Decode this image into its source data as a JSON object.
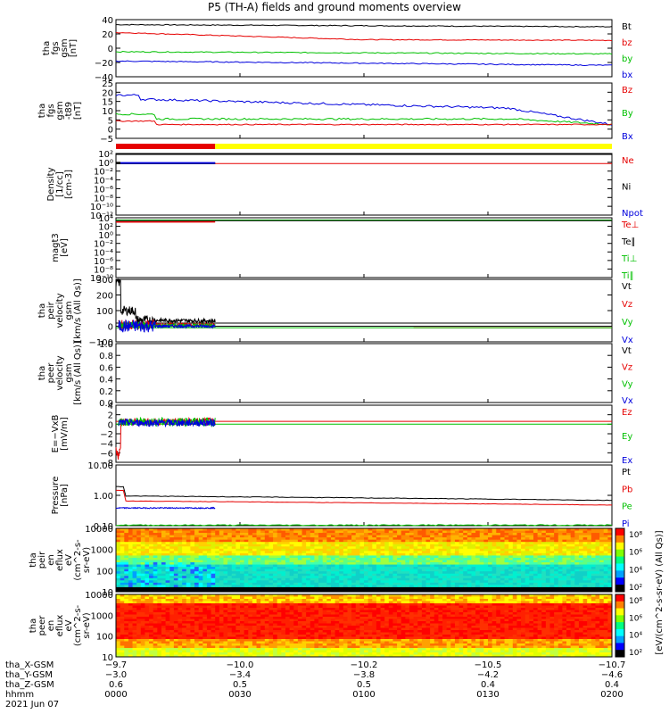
{
  "title": "P5 (TH-A) fields and ground moments overview",
  "colors": {
    "black": "#000000",
    "red": "#e60000",
    "green": "#00c000",
    "blue": "#0000dd",
    "yellow": "#ffff00"
  },
  "panels": [
    {
      "id": "fgs",
      "ylabel": [
        "tha",
        "fgs",
        "gsm",
        "[nT]"
      ],
      "ticks": [
        "40",
        "20",
        "0",
        "−20",
        "−40"
      ],
      "legend": [
        {
          "t": "Bt",
          "c": "black"
        },
        {
          "t": "bz",
          "c": "red"
        },
        {
          "t": "by",
          "c": "green"
        },
        {
          "t": "bx",
          "c": "blue"
        }
      ]
    },
    {
      "id": "fgs_h",
      "ylabel": [
        "tha",
        "fgs",
        "gsm",
        "-t89",
        "[nT]"
      ],
      "ticks": [
        "25",
        "20",
        "15",
        "10",
        "5",
        "0",
        "−5"
      ],
      "legend": [
        {
          "t": "Bz",
          "c": "red"
        },
        {
          "t": "By",
          "c": "green"
        },
        {
          "t": "Bx",
          "c": "blue"
        }
      ]
    },
    {
      "id": "dens",
      "ylabel": [
        "Density",
        "[1/cc]",
        "[cm-3]"
      ],
      "ticks": [
        "10²",
        "10⁰",
        "10⁻²",
        "10⁻⁴",
        "10⁻⁶",
        "10⁻⁸",
        "10⁻¹⁰",
        "10⁻¹²"
      ],
      "legend": [
        {
          "t": "Ne",
          "c": "red"
        },
        {
          "t": "Ni",
          "c": "black"
        },
        {
          "t": "Npot",
          "c": "blue"
        }
      ]
    },
    {
      "id": "temp",
      "ylabel": [
        "magt3",
        "[eV]"
      ],
      "ticks": [
        "10⁴",
        "10²",
        "10⁰",
        "10⁻²",
        "10⁻⁴",
        "10⁻⁶",
        "10⁻⁸",
        "10⁻¹⁰"
      ],
      "legend": [
        {
          "t": "Te⊥",
          "c": "red"
        },
        {
          "t": "Te∥",
          "c": "black"
        },
        {
          "t": "Ti⊥",
          "c": "green"
        },
        {
          "t": "Ti∥",
          "c": "green"
        }
      ]
    },
    {
      "id": "vi",
      "ylabel": [
        "tha",
        "peir",
        "velocity",
        "gsm",
        "[km/s (All Qs)]"
      ],
      "ticks": [
        "300",
        "200",
        "100",
        "0",
        "−100"
      ],
      "legend": [
        {
          "t": "Vt",
          "c": "black"
        },
        {
          "t": "Vz",
          "c": "red"
        },
        {
          "t": "Vy",
          "c": "green"
        },
        {
          "t": "Vx",
          "c": "blue"
        }
      ]
    },
    {
      "id": "ve",
      "ylabel": [
        "tha",
        "peer",
        "velocity",
        "gsm",
        "[km/s (All Qs)]"
      ],
      "ticks": [
        "1.0",
        "0.8",
        "0.6",
        "0.4",
        "0.2",
        "0.0"
      ],
      "legend": [
        {
          "t": "Vt",
          "c": "black"
        },
        {
          "t": "Vz",
          "c": "red"
        },
        {
          "t": "Vy",
          "c": "green"
        },
        {
          "t": "Vx",
          "c": "blue"
        }
      ]
    },
    {
      "id": "ef",
      "ylabel": [
        "E=−VxB",
        "[mV/m]"
      ],
      "ticks": [
        "4",
        "2",
        "0",
        "−2",
        "−4",
        "−6",
        "−8"
      ],
      "legend": [
        {
          "t": "Ez",
          "c": "red"
        },
        {
          "t": "Ey",
          "c": "green"
        },
        {
          "t": "Ex",
          "c": "blue"
        }
      ]
    },
    {
      "id": "pres",
      "ylabel": [
        "Pressure",
        "[nPa]"
      ],
      "ticks": [
        "10.00",
        "1.00",
        "0.10"
      ],
      "legend": [
        {
          "t": "Pt",
          "c": "black"
        },
        {
          "t": "Pb",
          "c": "red"
        },
        {
          "t": "Pe",
          "c": "green"
        },
        {
          "t": "Pi",
          "c": "blue"
        }
      ]
    },
    {
      "id": "ispec",
      "ylabel": [
        "tha",
        "peir",
        "en",
        "eflux",
        "eV",
        "(cm^2-s-",
        "sr-eV)"
      ],
      "ticks": [
        "10000",
        "1000",
        "100",
        "10"
      ],
      "legend": []
    },
    {
      "id": "espec",
      "ylabel": [
        "tha",
        "peer",
        "en",
        "eflux",
        "eV",
        "(cm^2-s-",
        "sr-eV)"
      ],
      "ticks": [
        "10000",
        "1000",
        "100",
        "10"
      ],
      "legend": []
    }
  ],
  "colorbar": {
    "label": "[eV/(cm^2-s-sr-eV) (All Qs)]",
    "ticks_upper": [
      "10⁸",
      "10⁶",
      "10⁴",
      "10²"
    ],
    "ticks_lower": [
      "10⁸",
      "10⁶",
      "10⁴",
      "10²"
    ]
  },
  "xaxis": {
    "rows": [
      {
        "name": "tha_X-GSM",
        "vals": [
          "−9.7",
          "−10.0",
          "−10.2",
          "−10.5",
          "−10.7"
        ]
      },
      {
        "name": "tha_Y-GSM",
        "vals": [
          "−3.0",
          "−3.4",
          "−3.8",
          "−4.2",
          "−4.6"
        ]
      },
      {
        "name": "tha_Z-GSM",
        "vals": [
          "0.6",
          "0.5",
          "0.5",
          "0.4",
          "0.4"
        ]
      },
      {
        "name": "hhmm",
        "vals": [
          "0000",
          "0030",
          "0100",
          "0130",
          "0200"
        ]
      }
    ],
    "date": "2021 Jun 07"
  },
  "chart_data": {
    "type": "line",
    "title": "P5 (TH-A) fields and ground moments overview",
    "x_unit": "hhmm",
    "x": [
      "0000",
      "0030",
      "0100",
      "0130",
      "0200"
    ],
    "xrange": [
      "0000",
      "0200"
    ],
    "date": "2021 Jun 07",
    "panels": [
      {
        "ylabel": "tha fgs gsm [nT]",
        "ylim": [
          -40,
          40
        ],
        "series": [
          {
            "name": "Bt",
            "values": [
              33,
              31,
              30,
              30,
              30
            ]
          },
          {
            "name": "bz",
            "values": [
              22,
              14,
              11,
              10,
              9
            ]
          },
          {
            "name": "by",
            "values": [
              -5,
              -7,
              -9,
              -8,
              -8
            ]
          },
          {
            "name": "bx",
            "values": [
              -18,
              -19,
              -20,
              -22,
              -24
            ]
          }
        ]
      },
      {
        "ylabel": "tha fgs gsm -t89 [nT]",
        "ylim": [
          -7,
          25
        ],
        "series": [
          {
            "name": "Bz",
            "values": [
              2,
              1,
              1,
              1,
              2
            ]
          },
          {
            "name": "By",
            "values": [
              6,
              4,
              4,
              4,
              1
            ]
          },
          {
            "name": "Bx",
            "values": [
              16,
              13,
              11,
              9,
              1
            ]
          }
        ]
      },
      {
        "ylabel": "Density [1/cc] [cm-3]",
        "scale": "log",
        "ylim": [
          1e-12,
          100
        ],
        "series": [
          {
            "name": "Ne",
            "values": [
              0.5,
              0.5,
              0.5,
              0.5,
              0.5
            ]
          },
          {
            "name": "Ni",
            "values": [
              0.6,
              0.6,
              null,
              null,
              null
            ]
          },
          {
            "name": "Npot",
            "values": [
              0.7,
              0.7,
              null,
              null,
              null
            ]
          }
        ]
      },
      {
        "ylabel": "magt3 [eV]",
        "scale": "log",
        "ylim": [
          1e-10,
          10000
        ],
        "series": [
          {
            "name": "Te⊥",
            "values": [
              1000,
              1000,
              1000,
              1000,
              1000
            ]
          },
          {
            "name": "Te∥",
            "values": [
              2000,
              2000,
              2000,
              2000,
              2000
            ]
          },
          {
            "name": "Ti⊥",
            "values": [
              3000,
              3000,
              3000,
              3000,
              3000
            ]
          },
          {
            "name": "Ti∥",
            "values": [
              3000,
              3000,
              3000,
              3000,
              3000
            ]
          }
        ]
      },
      {
        "ylabel": "tha peir velocity gsm [km/s (All Qs)]",
        "ylim": [
          -100,
          300
        ],
        "series": [
          {
            "name": "Vt",
            "values": [
              80,
              20,
              20,
              20,
              20
            ]
          },
          {
            "name": "Vz",
            "values": [
              30,
              5,
              5,
              5,
              5
            ]
          },
          {
            "name": "Vy",
            "values": [
              -10,
              -10,
              -10,
              -10,
              -10
            ]
          },
          {
            "name": "Vx",
            "values": [
              -30,
              10,
              10,
              10,
              10
            ]
          }
        ]
      },
      {
        "ylabel": "tha peer velocity gsm [km/s (All Qs)]",
        "ylim": [
          0,
          1
        ],
        "series": []
      },
      {
        "ylabel": "E=-VxB [mV/m]",
        "ylim": [
          -8,
          4
        ],
        "series": [
          {
            "name": "Ez",
            "values": [
              0.5,
              0.5,
              0.5,
              0.5,
              0.5
            ]
          },
          {
            "name": "Ey",
            "values": [
              0,
              0,
              0,
              0,
              0
            ]
          },
          {
            "name": "Ex",
            "values": [
              0.3,
              null,
              null,
              null,
              null
            ]
          }
        ]
      },
      {
        "ylabel": "Pressure [nPa]",
        "scale": "log",
        "ylim": [
          0.04,
          10
        ],
        "series": [
          {
            "name": "Pt",
            "values": [
              0.6,
              0.5,
              0.45,
              0.42,
              0.4
            ]
          },
          {
            "name": "Pb",
            "values": [
              0.4,
              0.3,
              0.28,
              0.26,
              0.25
            ]
          },
          {
            "name": "Pe",
            "values": [
              0.04,
              0.04,
              0.04,
              0.04,
              0.04
            ]
          },
          {
            "name": "Pi",
            "values": [
              0.2,
              0.18,
              null,
              null,
              null
            ]
          }
        ]
      }
    ]
  }
}
